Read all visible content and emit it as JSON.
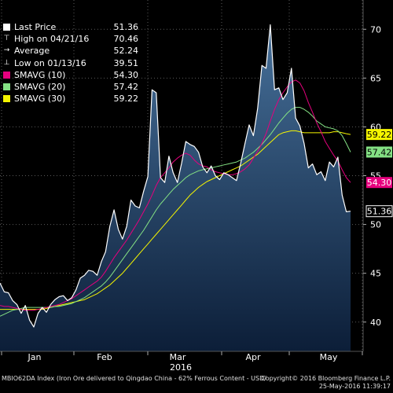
{
  "chart_data": {
    "type": "line",
    "ylim": [
      37,
      73
    ],
    "y_ticks": [
      40,
      45,
      50,
      55,
      60,
      65,
      70
    ],
    "x_tick_labels": [
      "Jan",
      "Feb",
      "Mar",
      "Apr",
      "May"
    ],
    "x_sub_label": "2016",
    "grid": true,
    "legend_position": "top-left",
    "series": [
      {
        "name": "Last Price",
        "color": "#ffffff",
        "fill": true,
        "values": [
          44.0,
          43.1,
          43.0,
          42.2,
          41.8,
          40.9,
          41.7,
          40.2,
          39.5,
          40.9,
          41.5,
          41.0,
          41.8,
          42.3,
          42.6,
          42.7,
          42.2,
          42.5,
          43.3,
          44.5,
          44.8,
          45.3,
          45.2,
          44.8,
          46.2,
          47.2,
          49.8,
          51.5,
          49.5,
          48.5,
          49.8,
          52.5,
          51.9,
          51.7,
          53.4,
          54.9,
          63.8,
          63.5,
          54.8,
          54.3,
          57.0,
          55.3,
          54.3,
          56.3,
          58.5,
          58.2,
          58.0,
          57.4,
          55.9,
          55.3,
          56.0,
          55.0,
          54.6,
          55.3,
          55.1,
          54.8,
          54.5,
          56.3,
          58.3,
          60.2,
          59.1,
          61.9,
          66.3,
          66.0,
          70.46,
          63.8,
          64.0,
          62.8,
          63.5,
          66.0,
          60.9,
          60.1,
          58.3,
          55.8,
          56.2,
          55.1,
          55.4,
          54.5,
          56.4,
          55.9,
          56.9,
          53.0,
          51.3,
          51.36
        ],
        "last_label": "51.36"
      },
      {
        "name": "SMAVG (10)",
        "color": "#e6007e",
        "values": [
          41.7,
          41.6,
          41.6,
          41.5,
          41.4,
          41.3,
          41.2,
          41.2,
          41.2,
          41.3,
          41.4,
          41.5,
          41.6,
          41.7,
          41.8,
          42.0,
          42.2,
          42.4,
          42.7,
          43.0,
          43.3,
          43.6,
          43.9,
          44.2,
          44.6,
          45.2,
          45.9,
          46.6,
          47.2,
          47.8,
          48.4,
          49.1,
          49.8,
          50.5,
          51.3,
          52.1,
          53.0,
          54.0,
          54.8,
          55.3,
          55.8,
          56.4,
          56.8,
          57.1,
          57.3,
          57.1,
          56.6,
          56.2,
          56.0,
          55.9,
          55.6,
          55.4,
          55.3,
          55.2,
          55.1,
          55.1,
          55.2,
          55.4,
          55.7,
          56.1,
          56.8,
          57.5,
          58.3,
          59.3,
          60.6,
          61.8,
          62.8,
          63.5,
          64.1,
          64.6,
          64.8,
          64.5,
          63.7,
          62.5,
          61.5,
          60.4,
          59.5,
          58.5,
          57.8,
          57.1,
          56.5,
          55.6,
          54.8,
          54.3
        ],
        "last_label": "54.30"
      },
      {
        "name": "SMAVG (20)",
        "color": "#84e184",
        "values": [
          40.6,
          40.8,
          41.0,
          41.2,
          41.3,
          41.4,
          41.5,
          41.5,
          41.5,
          41.5,
          41.5,
          41.5,
          41.5,
          41.6,
          41.6,
          41.7,
          41.8,
          41.9,
          42.1,
          42.3,
          42.5,
          42.8,
          43.1,
          43.4,
          43.7,
          44.1,
          44.6,
          45.2,
          45.8,
          46.4,
          47.0,
          47.6,
          48.2,
          48.8,
          49.4,
          50.1,
          50.8,
          51.5,
          52.1,
          52.6,
          53.1,
          53.6,
          54.0,
          54.4,
          54.8,
          55.1,
          55.3,
          55.5,
          55.6,
          55.7,
          55.8,
          55.9,
          56.0,
          56.1,
          56.2,
          56.3,
          56.4,
          56.6,
          56.8,
          57.1,
          57.4,
          57.8,
          58.2,
          58.7,
          59.2,
          59.8,
          60.4,
          60.9,
          61.4,
          61.8,
          62.0,
          62.0,
          61.8,
          61.5,
          61.1,
          60.6,
          60.3,
          60.0,
          59.9,
          59.8,
          59.6,
          59.1,
          58.3,
          57.42
        ],
        "last_label": "57.42"
      },
      {
        "name": "SMAVG (30)",
        "color": "#f5f500",
        "values": [
          41.3,
          41.3,
          41.3,
          41.3,
          41.3,
          41.3,
          41.3,
          41.3,
          41.3,
          41.3,
          41.3,
          41.4,
          41.5,
          41.6,
          41.7,
          41.8,
          41.9,
          42.0,
          42.1,
          42.2,
          42.3,
          42.5,
          42.7,
          42.9,
          43.2,
          43.5,
          43.8,
          44.2,
          44.6,
          45.0,
          45.5,
          46.0,
          46.5,
          47.0,
          47.5,
          48.0,
          48.5,
          49.0,
          49.5,
          50.0,
          50.5,
          51.0,
          51.5,
          52.0,
          52.5,
          53.0,
          53.4,
          53.8,
          54.1,
          54.4,
          54.6,
          54.8,
          55.0,
          55.2,
          55.4,
          55.6,
          55.8,
          56.0,
          56.3,
          56.6,
          56.9,
          57.2,
          57.6,
          58.0,
          58.4,
          58.8,
          59.2,
          59.4,
          59.5,
          59.6,
          59.6,
          59.5,
          59.4,
          59.4,
          59.4,
          59.4,
          59.4,
          59.4,
          59.4,
          59.5,
          59.5,
          59.4,
          59.3,
          59.22
        ],
        "last_label": "59.22"
      }
    ]
  },
  "legend": [
    {
      "label": "Last Price",
      "value": "51.36",
      "marker": "square",
      "color": "#ffffff"
    },
    {
      "label": "High on 04/21/16",
      "value": "70.46",
      "marker": "high",
      "color": "#ffffff"
    },
    {
      "label": "Average",
      "value": "52.24",
      "marker": "average",
      "color": "#ffffff"
    },
    {
      "label": "Low on 01/13/16",
      "value": "39.51",
      "marker": "low",
      "color": "#ffffff"
    },
    {
      "label": "SMAVG (10)",
      "value": "54.30",
      "marker": "square",
      "color": "#e6007e"
    },
    {
      "label": "SMAVG (20)",
      "value": "57.42",
      "marker": "square",
      "color": "#84e184"
    },
    {
      "label": "SMAVG (30)",
      "value": "59.22",
      "marker": "square",
      "color": "#f5f500"
    }
  ],
  "footer": {
    "left": "MBIO62DA Index (Iron Ore delivered to Qingdao China - 62% Ferrous Content - USD/",
    "right_line1": "Copyright© 2016 Bloomberg Finance L.P.",
    "right_line2": "25-May-2016 11:39:17"
  }
}
